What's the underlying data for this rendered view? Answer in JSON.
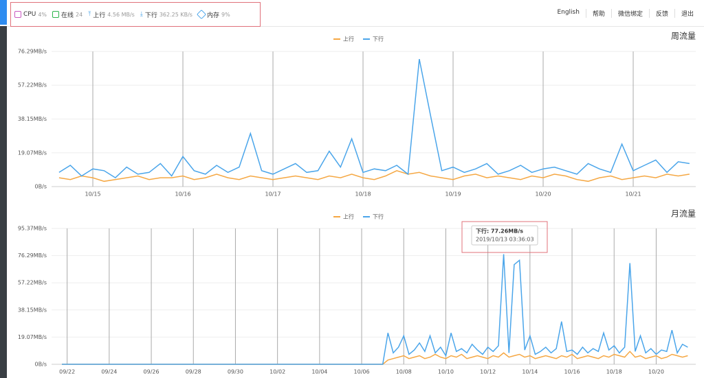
{
  "header": {
    "stats": [
      {
        "label": "CPU",
        "value": "4%"
      },
      {
        "label": "在线",
        "value": "24"
      },
      {
        "label": "上行",
        "value": "4.56 MB/s"
      },
      {
        "label": "下行",
        "value": "362.25 KB/s"
      },
      {
        "label": "内存",
        "value": "9%"
      }
    ],
    "nav": [
      "English",
      "帮助",
      "微信绑定",
      "反馈",
      "退出"
    ]
  },
  "chart_data": [
    {
      "type": "line",
      "title": "周流量",
      "grid": true,
      "categories": [
        null,
        null,
        null,
        "10/15",
        null,
        null,
        null,
        null,
        null,
        null,
        null,
        "10/16",
        null,
        null,
        null,
        null,
        null,
        null,
        null,
        "10/17",
        null,
        null,
        null,
        null,
        null,
        null,
        null,
        "10/18",
        null,
        null,
        null,
        null,
        null,
        null,
        null,
        "10/19",
        null,
        null,
        null,
        null,
        null,
        null,
        null,
        "10/20",
        null,
        null,
        null,
        null,
        null,
        null,
        null,
        "10/21",
        null,
        null,
        null,
        null,
        null
      ],
      "series": [
        {
          "name": "上行",
          "color": "#f5a742",
          "values": [
            5,
            4,
            6,
            5,
            3,
            4,
            5,
            6,
            4,
            5,
            5,
            6,
            4,
            5,
            7,
            5,
            4,
            6,
            5,
            4,
            5,
            6,
            5,
            4,
            6,
            5,
            7,
            5,
            4,
            6,
            9,
            7,
            8,
            6,
            5,
            4,
            6,
            7,
            5,
            6,
            5,
            4,
            6,
            5,
            7,
            6,
            4,
            3,
            5,
            6,
            4,
            5,
            6,
            5,
            7,
            6,
            7
          ]
        },
        {
          "name": "下行",
          "color": "#4aa5ea",
          "values": [
            8,
            12,
            6,
            10,
            9,
            5,
            11,
            7,
            8,
            13,
            6,
            17,
            9,
            7,
            12,
            8,
            11,
            30,
            9,
            7,
            10,
            13,
            8,
            9,
            20,
            11,
            27,
            8,
            10,
            9,
            12,
            7,
            72,
            40,
            9,
            11,
            8,
            10,
            13,
            7,
            9,
            12,
            8,
            10,
            11,
            9,
            7,
            13,
            10,
            8,
            24,
            9,
            12,
            15,
            8,
            14,
            13
          ]
        }
      ],
      "ylim": [
        0,
        76.29
      ],
      "yticks": [
        {
          "value": 0,
          "label": "0B/s"
        },
        {
          "value": 19.07,
          "label": "19.07MB/s"
        },
        {
          "value": 38.15,
          "label": "38.15MB/s"
        },
        {
          "value": 57.22,
          "label": "57.22MB/s"
        },
        {
          "value": 76.29,
          "label": "76.29MB/s"
        }
      ]
    },
    {
      "type": "line",
      "title": "月流量",
      "grid": true,
      "categories": [
        null,
        "09/22",
        null,
        null,
        null,
        null,
        null,
        null,
        null,
        "09/24",
        null,
        null,
        null,
        null,
        null,
        null,
        null,
        "09/26",
        null,
        null,
        null,
        null,
        null,
        null,
        null,
        "09/28",
        null,
        null,
        null,
        null,
        null,
        null,
        null,
        "09/30",
        null,
        null,
        null,
        null,
        null,
        null,
        null,
        "10/02",
        null,
        null,
        null,
        null,
        null,
        null,
        null,
        "10/04",
        null,
        null,
        null,
        null,
        null,
        null,
        null,
        "10/06",
        null,
        null,
        null,
        null,
        null,
        null,
        null,
        "10/08",
        null,
        null,
        null,
        null,
        null,
        null,
        null,
        "10/10",
        null,
        null,
        null,
        null,
        null,
        null,
        null,
        "10/12",
        null,
        null,
        null,
        null,
        null,
        null,
        null,
        "10/14",
        null,
        null,
        null,
        null,
        null,
        null,
        null,
        "10/16",
        null,
        null,
        null,
        null,
        null,
        null,
        null,
        "10/18",
        null,
        null,
        null,
        null,
        null,
        null,
        null,
        "10/20",
        null,
        null,
        null,
        null,
        null,
        null
      ],
      "series": [
        {
          "name": "上行",
          "color": "#f5a742",
          "values": [
            0,
            0,
            0,
            0,
            0,
            0,
            0,
            0,
            0,
            0,
            0,
            0,
            0,
            0,
            0,
            0,
            0,
            0,
            0,
            0,
            0,
            0,
            0,
            0,
            0,
            0,
            0,
            0,
            0,
            0,
            0,
            0,
            0,
            0,
            0,
            0,
            0,
            0,
            0,
            0,
            0,
            0,
            0,
            0,
            0,
            0,
            0,
            0,
            0,
            0,
            0,
            0,
            0,
            0,
            0,
            0,
            0,
            0,
            0,
            0,
            0,
            0,
            3,
            4,
            5,
            6,
            4,
            5,
            6,
            4,
            5,
            7,
            5,
            4,
            6,
            5,
            7,
            4,
            5,
            6,
            5,
            4,
            6,
            5,
            8,
            5,
            6,
            7,
            5,
            6,
            4,
            5,
            6,
            5,
            4,
            6,
            5,
            7,
            4,
            5,
            6,
            5,
            4,
            6,
            5,
            7,
            6,
            5,
            9,
            5,
            6,
            4,
            5,
            6,
            4,
            5,
            7,
            6,
            5,
            6
          ]
        },
        {
          "name": "下行",
          "color": "#4aa5ea",
          "values": [
            0,
            0,
            0,
            0,
            0,
            0,
            0,
            0,
            0,
            0,
            0,
            0,
            0,
            0,
            0,
            0,
            0,
            0,
            0,
            0,
            0,
            0,
            0,
            0,
            0,
            0,
            0,
            0,
            0,
            0,
            0,
            0,
            0,
            0,
            0,
            0,
            0,
            0,
            0,
            0,
            0,
            0,
            0,
            0,
            0,
            0,
            0,
            0,
            0,
            0,
            0,
            0,
            0,
            0,
            0,
            0,
            0,
            0,
            0,
            0,
            0,
            0,
            22,
            8,
            12,
            20,
            7,
            10,
            15,
            9,
            20,
            8,
            12,
            6,
            22,
            9,
            11,
            8,
            14,
            10,
            7,
            12,
            9,
            13,
            77.26,
            8,
            70,
            73,
            10,
            20,
            7,
            9,
            12,
            8,
            11,
            30,
            9,
            10,
            7,
            12,
            8,
            11,
            9,
            22,
            10,
            13,
            8,
            12,
            71,
            9,
            20,
            8,
            11,
            7,
            10,
            9,
            24,
            8,
            14,
            12
          ]
        }
      ],
      "ylim": [
        0,
        95.37
      ],
      "yticks": [
        {
          "value": 0,
          "label": "0B/s"
        },
        {
          "value": 19.07,
          "label": "19.07MB/s"
        },
        {
          "value": 38.15,
          "label": "38.15MB/s"
        },
        {
          "value": 57.22,
          "label": "57.22MB/s"
        },
        {
          "value": 76.29,
          "label": "76.29MB/s"
        },
        {
          "value": 95.37,
          "label": "95.37MB/s"
        }
      ],
      "tooltip": {
        "title": "下行: 77.26MB/s",
        "time": "2019/10/13 03:36:03"
      }
    }
  ]
}
